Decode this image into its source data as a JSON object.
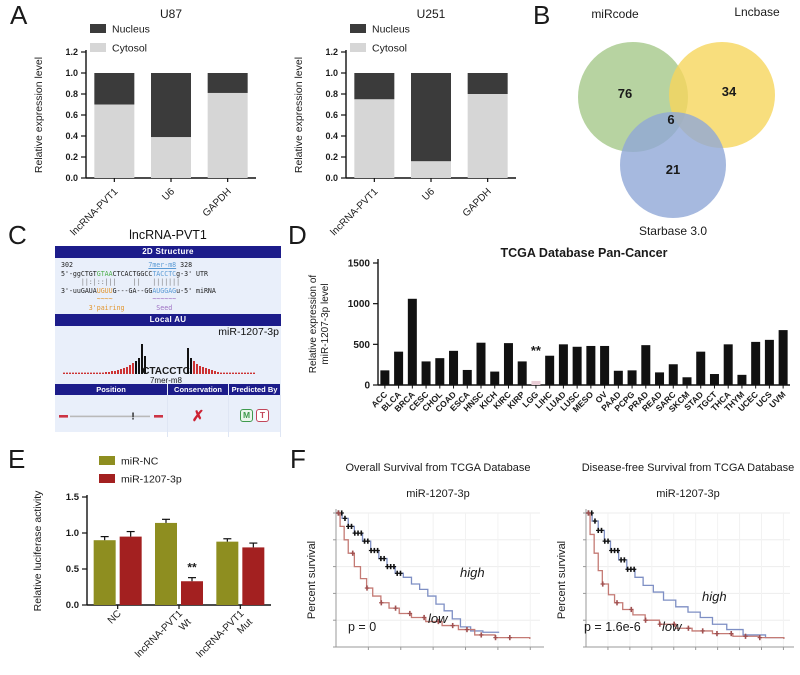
{
  "figure": {
    "panel_labels": {
      "a": "A",
      "b": "B",
      "c": "C",
      "d": "D",
      "e": "E",
      "f": "F"
    }
  },
  "chart_data": [
    {
      "id": "u87",
      "type": "bar",
      "stacked": true,
      "title": "U87",
      "ylabel": "Relative expression level",
      "categories": [
        "lncRNA-PVT1",
        "U6",
        "GAPDH"
      ],
      "series": [
        {
          "name": "Cytosol",
          "color": "#d6d6d6",
          "values": [
            0.7,
            0.39,
            0.81
          ]
        },
        {
          "name": "Nucleus",
          "color": "#3b3b3b",
          "values": [
            0.3,
            0.61,
            0.19
          ]
        }
      ],
      "legend_order": [
        "Nucleus",
        "Cytosol"
      ],
      "ylim": [
        0,
        1.2
      ],
      "yticks": [
        "0.0",
        "0.2",
        "0.4",
        "0.6",
        "0.8",
        "1.0",
        "1.2"
      ]
    },
    {
      "id": "u251",
      "type": "bar",
      "stacked": true,
      "title": "U251",
      "ylabel": "Relative expression level",
      "categories": [
        "lncRNA-PVT1",
        "U6",
        "GAPDH"
      ],
      "series": [
        {
          "name": "Cytosol",
          "color": "#d6d6d6",
          "values": [
            0.75,
            0.16,
            0.8
          ]
        },
        {
          "name": "Nucleus",
          "color": "#3b3b3b",
          "values": [
            0.25,
            0.84,
            0.2
          ]
        }
      ],
      "legend_order": [
        "Nucleus",
        "Cytosol"
      ],
      "ylim": [
        0,
        1.2
      ],
      "yticks": [
        "0.0",
        "0.2",
        "0.4",
        "0.6",
        "0.8",
        "1.0",
        "1.2"
      ]
    },
    {
      "id": "venn",
      "type": "venn",
      "sets": [
        {
          "name": "miRcode",
          "count": 76,
          "color": "#a5c88a"
        },
        {
          "name": "Lncbase",
          "count": 34,
          "color": "#f6d65c"
        },
        {
          "name": "Starbase 3.0",
          "count": 21,
          "color": "#90a7d7"
        }
      ],
      "intersection_count": 6
    },
    {
      "id": "pan",
      "type": "bar",
      "title": "TCGA Database Pan-Cancer",
      "ylabel": [
        "Relative expression of",
        "miR-1207-3p level"
      ],
      "ylim": [
        0,
        1500
      ],
      "yticks": [
        "0",
        "500",
        "1000",
        "1500"
      ],
      "categories": [
        "ACC",
        "BLCA",
        "BRCA",
        "CESC",
        "CHOL",
        "COAD",
        "ESCA",
        "HNSC",
        "KICH",
        "KIRC",
        "KIRP",
        "LGG",
        "LIHC",
        "LUAD",
        "LUSC",
        "MESO",
        "OV",
        "PAAD",
        "PCPG",
        "PRAD",
        "READ",
        "SARC",
        "SKCM",
        "STAD",
        "TGCT",
        "THCA",
        "THYM",
        "UCEC",
        "UCS",
        "UVM"
      ],
      "values": [
        180,
        410,
        1060,
        290,
        330,
        420,
        185,
        520,
        165,
        515,
        290,
        50,
        360,
        500,
        470,
        480,
        480,
        175,
        180,
        490,
        155,
        255,
        95,
        410,
        135,
        500,
        125,
        530,
        555,
        675
      ],
      "bar_color": "#111111",
      "highlight": {
        "category": "LGG",
        "color": "#e9cdd6",
        "annotation": "**"
      }
    },
    {
      "id": "luc",
      "type": "bar",
      "grouped": true,
      "ylabel": "Relative luciferase activity",
      "categories": [
        "NC",
        "lncRNA-PVT1 Wt",
        "lncRNA-PVT1 Mut"
      ],
      "cat_lines": [
        [
          "NC"
        ],
        [
          "lncRNA-PVT1",
          "Wt"
        ],
        [
          "lncRNA-PVT1",
          "Mut"
        ]
      ],
      "series": [
        {
          "name": "miR-NC",
          "color": "#8e8e20",
          "values": [
            0.9,
            1.14,
            0.88
          ],
          "errors": [
            0.05,
            0.05,
            0.04
          ]
        },
        {
          "name": "miR-1207-3p",
          "color": "#a32020",
          "values": [
            0.95,
            0.33,
            0.8
          ],
          "errors": [
            0.07,
            0.05,
            0.06
          ]
        }
      ],
      "ylim": [
        0,
        1.5
      ],
      "yticks": [
        "0.0",
        "0.5",
        "1.0",
        "1.5"
      ],
      "annotation": {
        "text": "**",
        "group": 1,
        "series": 1
      }
    },
    {
      "id": "km_os",
      "type": "line",
      "title": "Overall Survival from TCGA Database",
      "subtitle": "miR-1207-3p",
      "ylabel": "Percent survival",
      "p_text": "p = 0",
      "xticks": 6,
      "series": [
        {
          "name": "high",
          "color": "#7e8fc4",
          "points": [
            [
              0,
              1
            ],
            [
              0.03,
              0.96
            ],
            [
              0.06,
              0.9
            ],
            [
              0.09,
              0.85
            ],
            [
              0.13,
              0.79
            ],
            [
              0.17,
              0.72
            ],
            [
              0.21,
              0.66
            ],
            [
              0.25,
              0.6
            ],
            [
              0.29,
              0.55
            ],
            [
              0.33,
              0.52
            ],
            [
              0.37,
              0.47
            ],
            [
              0.41,
              0.43
            ],
            [
              0.45,
              0.38
            ],
            [
              0.49,
              0.32
            ],
            [
              0.53,
              0.27
            ],
            [
              0.57,
              0.21
            ],
            [
              0.61,
              0.15
            ],
            [
              0.66,
              0.12
            ],
            [
              0.72,
              0.11
            ],
            [
              0.8,
              0.11
            ]
          ],
          "cens": {
            "to": 0.32,
            "step": 0.016,
            "color": "#111111"
          }
        },
        {
          "name": "low",
          "color": "#c47a74",
          "points": [
            [
              0,
              1
            ],
            [
              0.02,
              0.9
            ],
            [
              0.04,
              0.8
            ],
            [
              0.06,
              0.7
            ],
            [
              0.09,
              0.6
            ],
            [
              0.12,
              0.51
            ],
            [
              0.15,
              0.44
            ],
            [
              0.18,
              0.38
            ],
            [
              0.22,
              0.33
            ],
            [
              0.26,
              0.29
            ],
            [
              0.31,
              0.25
            ],
            [
              0.37,
              0.22
            ],
            [
              0.44,
              0.19
            ],
            [
              0.52,
              0.16
            ],
            [
              0.6,
              0.13
            ],
            [
              0.68,
              0.09
            ],
            [
              0.78,
              0.07
            ],
            [
              0.95,
              0.06
            ]
          ],
          "cens": {
            "to": 0.9,
            "step": 0.07,
            "color": "#a05050"
          }
        }
      ],
      "labels": {
        "high": [
          160,
          122
        ],
        "low": [
          128,
          168
        ],
        "p": [
          48,
          176
        ]
      }
    },
    {
      "id": "km_dfs",
      "type": "line",
      "title": "Disease-free Survival from TCGA Database",
      "subtitle": "miR-1207-3p",
      "ylabel": "Percent survival",
      "p_text": "p = 1.6e-6",
      "xticks": 9,
      "series": [
        {
          "name": "high",
          "color": "#7e8fc4",
          "points": [
            [
              0,
              1
            ],
            [
              0.03,
              0.94
            ],
            [
              0.06,
              0.87
            ],
            [
              0.09,
              0.79
            ],
            [
              0.12,
              0.72
            ],
            [
              0.16,
              0.65
            ],
            [
              0.2,
              0.58
            ],
            [
              0.24,
              0.52
            ],
            [
              0.28,
              0.46
            ],
            [
              0.33,
              0.41
            ],
            [
              0.38,
              0.35
            ],
            [
              0.44,
              0.3
            ],
            [
              0.5,
              0.26
            ],
            [
              0.56,
              0.22
            ],
            [
              0.62,
              0.17
            ],
            [
              0.69,
              0.13
            ],
            [
              0.77,
              0.09
            ],
            [
              0.88,
              0.07
            ],
            [
              0.97,
              0.07
            ]
          ],
          "cens": {
            "to": 0.24,
            "step": 0.016,
            "color": "#111111"
          }
        },
        {
          "name": "low",
          "color": "#c47a74",
          "points": [
            [
              0,
              1
            ],
            [
              0.02,
              0.84
            ],
            [
              0.04,
              0.7
            ],
            [
              0.06,
              0.57
            ],
            [
              0.08,
              0.47
            ],
            [
              0.11,
              0.39
            ],
            [
              0.14,
              0.33
            ],
            [
              0.18,
              0.28
            ],
            [
              0.23,
              0.24
            ],
            [
              0.29,
              0.2
            ],
            [
              0.36,
              0.17
            ],
            [
              0.44,
              0.14
            ],
            [
              0.52,
              0.12
            ],
            [
              0.62,
              0.1
            ],
            [
              0.72,
              0.08
            ],
            [
              0.85,
              0.07
            ],
            [
              0.97,
              0.06
            ]
          ],
          "cens": {
            "to": 0.9,
            "step": 0.07,
            "color": "#a05050"
          }
        }
      ],
      "labels": {
        "high": [
          152,
          146
        ],
        "low": [
          112,
          176
        ],
        "p": [
          34,
          176
        ]
      }
    },
    {
      "id": "localau",
      "type": "area",
      "site_text": "CTACCTC",
      "site_type": "7mer-m8",
      "bars": [
        "d",
        "d",
        "d",
        "d",
        "d",
        "d",
        "d",
        "d",
        "d",
        "d",
        "d",
        "d",
        "d",
        "d",
        "r2",
        "r2",
        "r3",
        "r3",
        "r4",
        "r5",
        "r6",
        "r7",
        "r9",
        "r11",
        "b13",
        "b16",
        "b30",
        "b18",
        "T",
        "b26",
        "b16",
        "r13",
        "r10",
        "r8",
        "r7",
        "r6",
        "r5",
        "r4",
        "r3",
        "r2",
        "d",
        "d",
        "d",
        "d",
        "d",
        "d",
        "d",
        "d",
        "d",
        "d",
        "d",
        "d"
      ]
    }
  ],
  "panel_c": {
    "title": "lncRNA-PVT1",
    "hdr_structure": "2D Structure",
    "hdr_localau": "Local AU",
    "mirna": "miR-1207-3p",
    "lines": [
      [
        {
          "t": "302",
          "c": "ck"
        },
        {
          "t": "                   ",
          "c": "ck"
        },
        {
          "t": "7mer-m8",
          "c": "cb cu"
        },
        {
          "t": " ",
          "c": "ck"
        },
        {
          "t": "328",
          "c": "ck"
        }
      ],
      [
        {
          "t": "5'-ggCTGT",
          "c": "ck"
        },
        {
          "t": "GTAA",
          "c": "cg"
        },
        {
          "t": "CTCACTGGCC",
          "c": "ck"
        },
        {
          "t": "TACCTC",
          "c": "cb"
        },
        {
          "t": "g-3' UTR",
          "c": "ck"
        }
      ],
      [
        {
          "t": "     ||:|::|||    ||   |||||||",
          "c": "cgr"
        }
      ],
      [
        {
          "t": "3'-uuGAUA",
          "c": "ck"
        },
        {
          "t": "UGUU",
          "c": "co"
        },
        {
          "t": "G---GA--GG",
          "c": "ck"
        },
        {
          "t": "AUGGAG",
          "c": "cb"
        },
        {
          "t": "u-5' miRNA",
          "c": "ck"
        }
      ],
      [
        {
          "t": "         ",
          "c": "ck"
        },
        {
          "t": "~~~~",
          "c": "co"
        },
        {
          "t": "          ",
          "c": "ck"
        },
        {
          "t": "~~~~~~",
          "c": "cp"
        }
      ],
      [
        {
          "t": "       ",
          "c": "ck"
        },
        {
          "t": "3'pairing",
          "c": "co"
        },
        {
          "t": "        ",
          "c": "ck"
        },
        {
          "t": "Seed",
          "c": "cp"
        }
      ]
    ],
    "table": {
      "headers": [
        "Position",
        "Conservation",
        "Predicted By"
      ],
      "position_mark": "!",
      "conservation_mark": "✗",
      "predicted": [
        "M",
        "T"
      ]
    }
  }
}
